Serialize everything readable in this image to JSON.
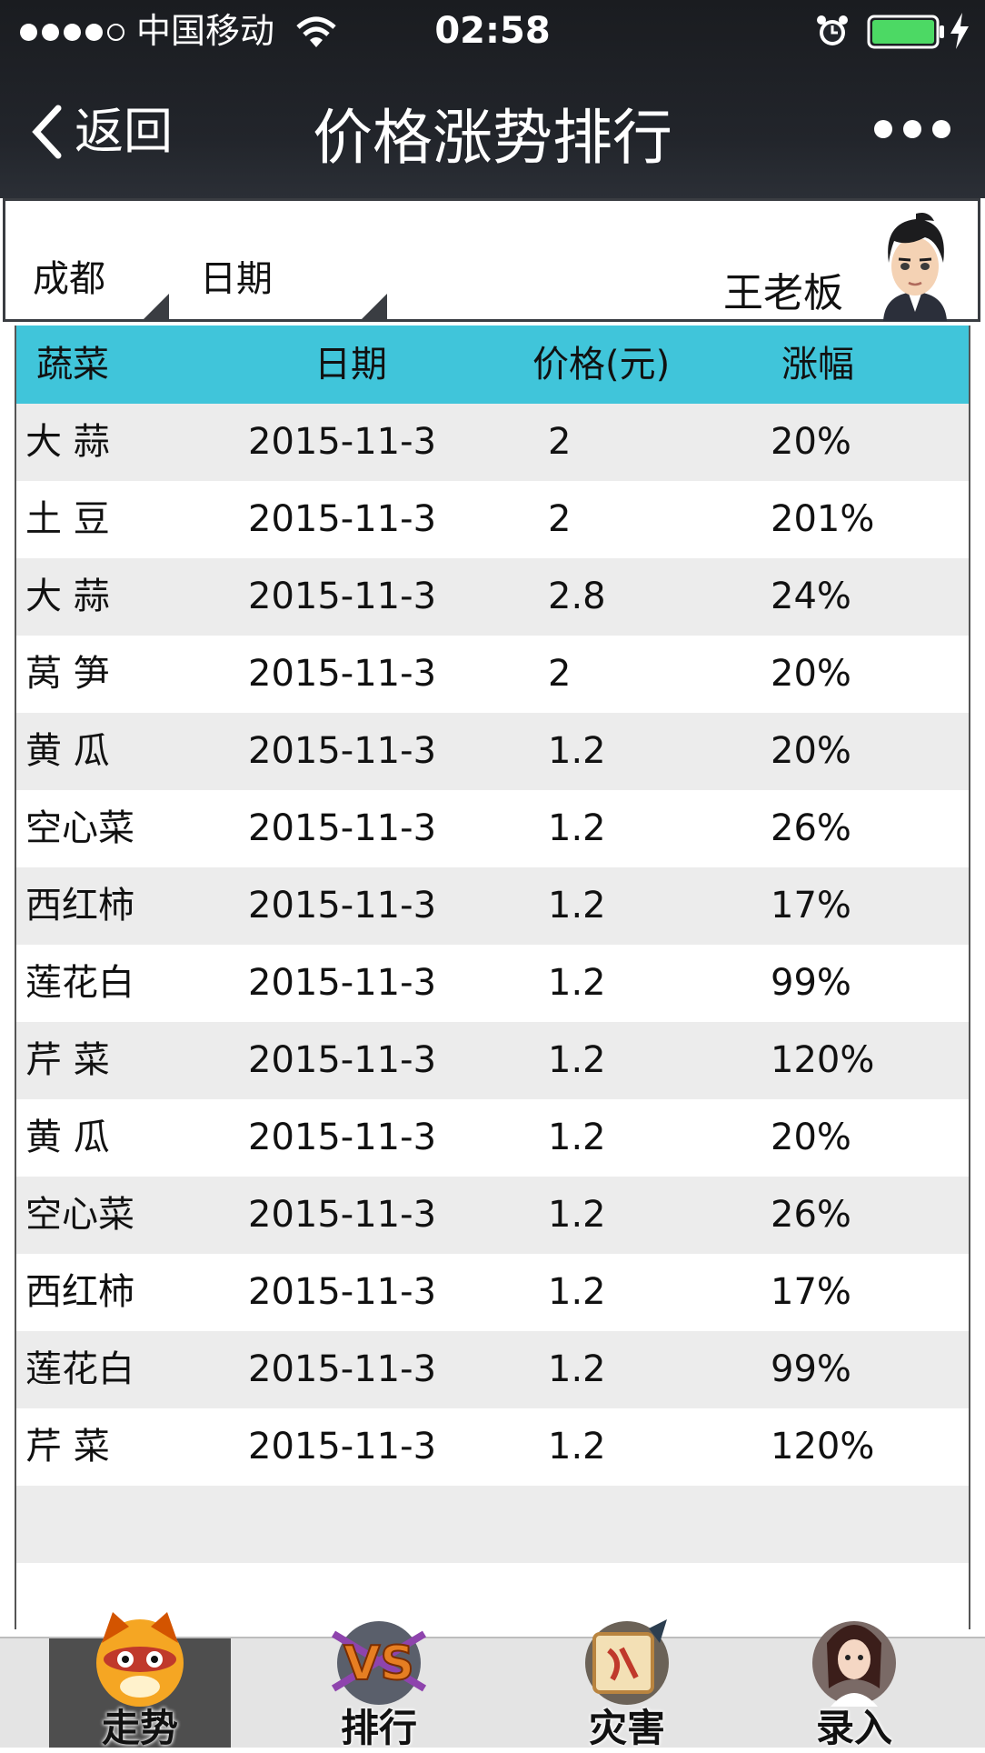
{
  "status": {
    "carrier": "中国移动",
    "time": "02:58"
  },
  "nav": {
    "back_label": "返回",
    "title": "价格涨势排行"
  },
  "filter": {
    "city": "成都",
    "date": "日期",
    "user_name": "王老板"
  },
  "table": {
    "headers": [
      "蔬菜",
      "日期",
      "价格(元)",
      "涨幅"
    ],
    "rows": [
      {
        "name": "大  蒜",
        "date": "2015-11-3",
        "price": "2",
        "change": "20%"
      },
      {
        "name": "土  豆",
        "date": "2015-11-3",
        "price": "2",
        "change": "201%"
      },
      {
        "name": "大  蒜",
        "date": "2015-11-3",
        "price": "2.8",
        "change": "24%"
      },
      {
        "name": "莴  笋",
        "date": "2015-11-3",
        "price": "2",
        "change": "20%"
      },
      {
        "name": "黄  瓜",
        "date": "2015-11-3",
        "price": "1.2",
        "change": "20%"
      },
      {
        "name": "空心菜",
        "date": "2015-11-3",
        "price": "1.2",
        "change": "26%"
      },
      {
        "name": "西红柿",
        "date": "2015-11-3",
        "price": "1.2",
        "change": "17%"
      },
      {
        "name": "莲花白",
        "date": "2015-11-3",
        "price": "1.2",
        "change": "99%"
      },
      {
        "name": "芹  菜",
        "date": "2015-11-3",
        "price": "1.2",
        "change": "120%"
      },
      {
        "name": "黄  瓜",
        "date": "2015-11-3",
        "price": "1.2",
        "change": "20%"
      },
      {
        "name": "空心菜",
        "date": "2015-11-3",
        "price": "1.2",
        "change": "26%"
      },
      {
        "name": "西红柿",
        "date": "2015-11-3",
        "price": "1.2",
        "change": "17%"
      },
      {
        "name": "莲花白",
        "date": "2015-11-3",
        "price": "1.2",
        "change": "99%"
      },
      {
        "name": "芹  菜",
        "date": "2015-11-3",
        "price": "1.2",
        "change": "120%"
      }
    ],
    "header_color": "#40c5da"
  },
  "tabs": [
    {
      "label": "走势",
      "icon": "trend-mascot-icon",
      "active": true
    },
    {
      "label": "排行",
      "icon": "versus-ranking-icon",
      "active": false
    },
    {
      "label": "灾害",
      "icon": "scroll-disaster-icon",
      "active": false
    },
    {
      "label": "录入",
      "icon": "character-entry-icon",
      "active": false
    }
  ]
}
